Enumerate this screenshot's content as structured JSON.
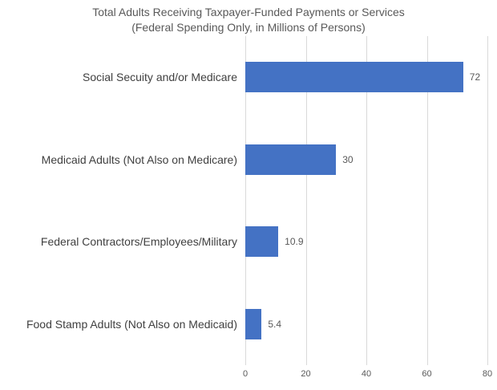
{
  "chart_data": {
    "type": "bar",
    "orientation": "horizontal",
    "title": "Total Adults Receiving Taxpayer-Funded Payments or Services",
    "subtitle": "(Federal Spending Only, in Millions of Persons)",
    "categories": [
      "Social Secuity and/or Medicare",
      "Medicaid Adults (Not Also on Medicare)",
      "Federal Contractors/Employees/Military",
      "Food Stamp Adults (Not Also on Medicaid)"
    ],
    "values": [
      72,
      30,
      10.9,
      5.4
    ],
    "data_labels": [
      "72",
      "30",
      "10.9",
      "5.4"
    ],
    "x_ticks": [
      0,
      20,
      40,
      60,
      80
    ],
    "xlim": [
      0,
      80
    ],
    "grid": "vertical-only",
    "legend": "none",
    "bar_color": "#4472C4",
    "gridline_color": "#D9D9D9",
    "title_color": "#595959",
    "label_color": "#404040",
    "tick_color": "#595959"
  }
}
